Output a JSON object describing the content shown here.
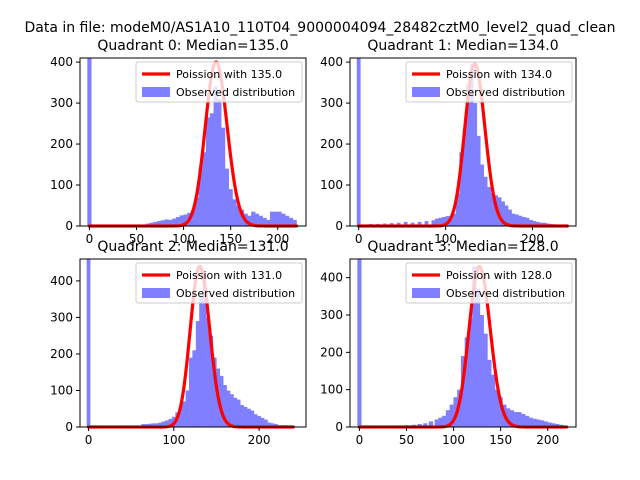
{
  "figure": {
    "title": "Data in file: modeM0/AS1A10_110T04_9000004094_28482cztM0_level2_quad_clean"
  },
  "colors": {
    "histogram": "#7f7fff",
    "poisson": "#ff0000",
    "axes": "#000000"
  },
  "chart_data": [
    {
      "type": "bar",
      "title": "Quadrant 0: Median=135.0",
      "median": 135.0,
      "xlim": [
        -10,
        230
      ],
      "ylim": [
        0,
        410
      ],
      "xticks": [
        0,
        50,
        100,
        150,
        200
      ],
      "yticks": [
        0,
        100,
        200,
        300,
        400
      ],
      "legend": [
        "Poission with 135.0",
        "Observed distribution"
      ],
      "legend_position": "top-right",
      "histogram": {
        "bin_width": 4.4,
        "bins": [
          [
            0,
            410
          ],
          [
            62,
            6
          ],
          [
            66,
            8
          ],
          [
            70,
            10
          ],
          [
            74,
            12
          ],
          [
            78,
            14
          ],
          [
            82,
            16
          ],
          [
            86,
            15
          ],
          [
            90,
            18
          ],
          [
            94,
            22
          ],
          [
            98,
            26
          ],
          [
            102,
            28
          ],
          [
            106,
            32
          ],
          [
            110,
            38
          ],
          [
            114,
            70
          ],
          [
            118,
            140
          ],
          [
            122,
            180
          ],
          [
            126,
            265
          ],
          [
            130,
            275
          ],
          [
            134,
            340
          ],
          [
            138,
            310
          ],
          [
            142,
            240
          ],
          [
            146,
            140
          ],
          [
            150,
            90
          ],
          [
            154,
            65
          ],
          [
            158,
            50
          ],
          [
            162,
            40
          ],
          [
            166,
            30
          ],
          [
            170,
            25
          ],
          [
            174,
            35
          ],
          [
            178,
            30
          ],
          [
            182,
            25
          ],
          [
            186,
            20
          ],
          [
            190,
            15
          ],
          [
            194,
            35
          ],
          [
            198,
            35
          ],
          [
            202,
            35
          ],
          [
            206,
            30
          ],
          [
            210,
            25
          ],
          [
            214,
            20
          ],
          [
            218,
            15
          ]
        ]
      },
      "poisson": {
        "label": "Poission with 135.0",
        "lambda": 135.0,
        "peak": 400,
        "x_range": [
          0,
          220
        ]
      }
    },
    {
      "type": "bar",
      "title": "Quadrant 1: Median=134.0",
      "median": 134.0,
      "xlim": [
        -10,
        250
      ],
      "ylim": [
        0,
        410
      ],
      "xticks": [
        0,
        100,
        200
      ],
      "yticks": [
        0,
        100,
        200,
        300,
        400
      ],
      "legend": [
        "Poission with 134.0",
        "Observed distribution"
      ],
      "legend_position": "top-right",
      "histogram": {
        "bin_width": 4.4,
        "bins": [
          [
            0,
            410
          ],
          [
            14,
            5
          ],
          [
            22,
            5
          ],
          [
            30,
            6
          ],
          [
            38,
            7
          ],
          [
            46,
            8
          ],
          [
            54,
            10
          ],
          [
            62,
            8
          ],
          [
            70,
            10
          ],
          [
            78,
            12
          ],
          [
            86,
            14
          ],
          [
            90,
            18
          ],
          [
            94,
            20
          ],
          [
            98,
            22
          ],
          [
            102,
            24
          ],
          [
            106,
            25
          ],
          [
            110,
            30
          ],
          [
            114,
            80
          ],
          [
            118,
            180
          ],
          [
            122,
            235
          ],
          [
            126,
            345
          ],
          [
            130,
            395
          ],
          [
            134,
            300
          ],
          [
            138,
            220
          ],
          [
            142,
            150
          ],
          [
            146,
            120
          ],
          [
            150,
            95
          ],
          [
            154,
            80
          ],
          [
            158,
            75
          ],
          [
            162,
            70
          ],
          [
            166,
            60
          ],
          [
            170,
            50
          ],
          [
            174,
            40
          ],
          [
            178,
            30
          ],
          [
            182,
            28
          ],
          [
            186,
            25
          ],
          [
            190,
            22
          ],
          [
            194,
            20
          ],
          [
            198,
            15
          ],
          [
            202,
            12
          ],
          [
            206,
            10
          ],
          [
            210,
            8
          ],
          [
            214,
            8
          ],
          [
            218,
            6
          ],
          [
            222,
            5
          ],
          [
            226,
            4
          ],
          [
            230,
            3
          ],
          [
            234,
            3
          ],
          [
            238,
            2
          ]
        ]
      },
      "poisson": {
        "label": "Poission with 134.0",
        "lambda": 134.0,
        "peak": 395,
        "x_range": [
          0,
          240
        ]
      }
    },
    {
      "type": "bar",
      "title": "Quadrant 2: Median=131.0",
      "median": 131.0,
      "xlim": [
        -10,
        255
      ],
      "ylim": [
        0,
        460
      ],
      "xticks": [
        0,
        100,
        200
      ],
      "yticks": [
        0,
        100,
        200,
        300,
        400
      ],
      "legend": [
        "Poission with 131.0",
        "Observed distribution"
      ],
      "legend_position": "top-right",
      "histogram": {
        "bin_width": 4.4,
        "bins": [
          [
            0,
            460
          ],
          [
            64,
            8
          ],
          [
            68,
            8
          ],
          [
            72,
            9
          ],
          [
            76,
            10
          ],
          [
            80,
            10
          ],
          [
            84,
            12
          ],
          [
            88,
            15
          ],
          [
            92,
            18
          ],
          [
            96,
            22
          ],
          [
            100,
            28
          ],
          [
            104,
            40
          ],
          [
            108,
            55
          ],
          [
            112,
            70
          ],
          [
            116,
            100
          ],
          [
            120,
            190
          ],
          [
            124,
            210
          ],
          [
            128,
            290
          ],
          [
            132,
            360
          ],
          [
            136,
            420
          ],
          [
            140,
            300
          ],
          [
            144,
            250
          ],
          [
            148,
            190
          ],
          [
            152,
            160
          ],
          [
            156,
            140
          ],
          [
            160,
            115
          ],
          [
            164,
            100
          ],
          [
            168,
            90
          ],
          [
            172,
            80
          ],
          [
            176,
            75
          ],
          [
            180,
            60
          ],
          [
            184,
            55
          ],
          [
            188,
            50
          ],
          [
            192,
            45
          ],
          [
            196,
            35
          ],
          [
            200,
            30
          ],
          [
            204,
            25
          ],
          [
            208,
            20
          ],
          [
            212,
            12
          ],
          [
            216,
            10
          ],
          [
            220,
            8
          ],
          [
            224,
            5
          ],
          [
            228,
            5
          ],
          [
            232,
            5
          ],
          [
            236,
            3
          ]
        ]
      },
      "poisson": {
        "label": "Poission with 131.0",
        "lambda": 131.0,
        "peak": 440,
        "x_range": [
          0,
          240
        ]
      }
    },
    {
      "type": "bar",
      "title": "Quadrant 3: Median=128.0",
      "median": 128.0,
      "xlim": [
        -10,
        230
      ],
      "ylim": [
        0,
        450
      ],
      "xticks": [
        0,
        50,
        100,
        150,
        200
      ],
      "yticks": [
        0,
        100,
        200,
        300,
        400
      ],
      "legend": [
        "Poission with 128.0",
        "Observed distribution"
      ],
      "legend_position": "top-right",
      "histogram": {
        "bin_width": 4.4,
        "bins": [
          [
            0,
            450
          ],
          [
            50,
            5
          ],
          [
            58,
            6
          ],
          [
            64,
            8
          ],
          [
            70,
            10
          ],
          [
            76,
            15
          ],
          [
            82,
            20
          ],
          [
            86,
            25
          ],
          [
            90,
            30
          ],
          [
            94,
            45
          ],
          [
            98,
            60
          ],
          [
            102,
            80
          ],
          [
            106,
            100
          ],
          [
            110,
            190
          ],
          [
            114,
            240
          ],
          [
            118,
            290
          ],
          [
            122,
            430
          ],
          [
            126,
            370
          ],
          [
            130,
            300
          ],
          [
            134,
            250
          ],
          [
            138,
            180
          ],
          [
            142,
            140
          ],
          [
            146,
            100
          ],
          [
            150,
            80
          ],
          [
            154,
            60
          ],
          [
            158,
            50
          ],
          [
            162,
            45
          ],
          [
            166,
            40
          ],
          [
            170,
            40
          ],
          [
            174,
            35
          ],
          [
            178,
            30
          ],
          [
            182,
            25
          ],
          [
            186,
            22
          ],
          [
            190,
            20
          ],
          [
            194,
            18
          ],
          [
            198,
            15
          ],
          [
            202,
            12
          ],
          [
            206,
            10
          ],
          [
            210,
            8
          ],
          [
            214,
            6
          ],
          [
            218,
            4
          ]
        ]
      },
      "poisson": {
        "label": "Poission with 128.0",
        "lambda": 128.0,
        "peak": 430,
        "x_range": [
          0,
          220
        ]
      }
    }
  ]
}
